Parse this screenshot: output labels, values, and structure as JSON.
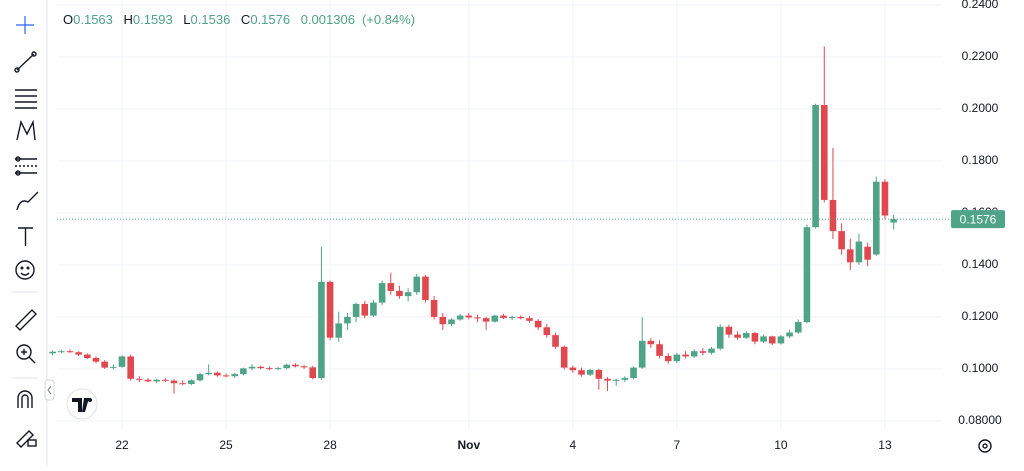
{
  "chart_data": {
    "type": "candlestick",
    "legend_labels": {
      "open": "O",
      "high": "H",
      "low": "L",
      "close": "C"
    },
    "change": 0.001306,
    "change_percent": {
      "value": 0.84,
      "label": "(+0.84%)"
    },
    "up_color": "#4fa386",
    "down_color": "#e0484f",
    "grid": true,
    "categories": [
      null,
      null,
      null,
      null,
      null,
      null,
      null,
      null,
      "22",
      null,
      null,
      null,
      null,
      null,
      null,
      null,
      null,
      null,
      null,
      null,
      "25",
      null,
      null,
      null,
      null,
      null,
      null,
      null,
      null,
      null,
      null,
      null,
      "28",
      null,
      null,
      null,
      null,
      null,
      null,
      null,
      null,
      null,
      null,
      null,
      null,
      null,
      null,
      null,
      "Nov",
      null,
      null,
      null,
      null,
      null,
      null,
      null,
      null,
      null,
      null,
      null,
      "4",
      null,
      null,
      null,
      null,
      null,
      null,
      null,
      null,
      null,
      null,
      null,
      "7",
      null,
      null,
      null,
      null,
      null,
      null,
      null,
      null,
      null,
      null,
      null,
      "10",
      null,
      null,
      null,
      null,
      null,
      null,
      null,
      null,
      null,
      null,
      null,
      "13",
      null
    ],
    "open": [
      0.106,
      0.1066,
      0.1068,
      0.1064,
      0.1055,
      0.1042,
      0.1028,
      0.1005,
      0.1008,
      0.1048,
      0.0962,
      0.0958,
      0.0952,
      0.0958,
      0.0955,
      0.0945,
      0.0942,
      0.0956,
      0.098,
      0.0985,
      0.0975,
      0.0972,
      0.098,
      0.1002,
      0.1008,
      0.1003,
      0.1,
      0.1003,
      0.1016,
      0.101,
      0.1006,
      0.0965,
      0.1335,
      0.112,
      0.1175,
      0.12,
      0.125,
      0.1205,
      0.1255,
      0.133,
      0.13,
      0.128,
      0.1295,
      0.1355,
      0.1265,
      0.12,
      0.1172,
      0.119,
      0.1205,
      0.1198,
      0.1195,
      0.1182,
      0.1205,
      0.1196,
      0.12,
      0.1195,
      0.1185,
      0.116,
      0.113,
      0.1085,
      0.1005,
      0.0995,
      0.0978,
      0.0996,
      0.0962,
      0.0955,
      0.0958,
      0.0965,
      0.1005,
      0.1108,
      0.1095,
      0.105,
      0.103,
      0.1055,
      0.1048,
      0.1068,
      0.1062,
      0.1078,
      0.1162,
      0.1132,
      0.112,
      0.1138,
      0.1105,
      0.1125,
      0.1098,
      0.1125,
      0.114,
      0.118,
      0.1545,
      0.2015,
      0.165,
      0.153,
      0.146,
      0.141,
      0.147,
      0.144,
      0.172,
      0.1563
    ],
    "high": [
      0.1072,
      0.1074,
      0.1075,
      0.1068,
      0.106,
      0.1048,
      0.1034,
      0.1018,
      0.1052,
      0.1055,
      0.0972,
      0.0965,
      0.0962,
      0.0964,
      0.096,
      0.0956,
      0.096,
      0.0985,
      0.1018,
      0.099,
      0.0982,
      0.0985,
      0.1005,
      0.1018,
      0.1012,
      0.101,
      0.1008,
      0.102,
      0.1022,
      0.1015,
      0.1012,
      0.147,
      0.134,
      0.122,
      0.1215,
      0.1255,
      0.1262,
      0.1265,
      0.134,
      0.137,
      0.132,
      0.131,
      0.1365,
      0.1362,
      0.128,
      0.1215,
      0.1195,
      0.1212,
      0.1215,
      0.1208,
      0.12,
      0.1208,
      0.1212,
      0.1205,
      0.1206,
      0.1203,
      0.1192,
      0.1172,
      0.114,
      0.109,
      0.1012,
      0.1005,
      0.1,
      0.1,
      0.0968,
      0.0962,
      0.0972,
      0.101,
      0.1198,
      0.1118,
      0.111,
      0.106,
      0.1062,
      0.1068,
      0.1075,
      0.108,
      0.1085,
      0.1172,
      0.117,
      0.1145,
      0.1145,
      0.1142,
      0.1132,
      0.1128,
      0.113,
      0.115,
      0.119,
      0.1555,
      0.202,
      0.224,
      0.185,
      0.156,
      0.15,
      0.152,
      0.1485,
      0.174,
      0.173,
      0.1593
    ],
    "low": [
      0.1052,
      0.106,
      0.1062,
      0.105,
      0.1038,
      0.1022,
      0.1,
      0.0998,
      0.1005,
      0.0955,
      0.095,
      0.0948,
      0.0945,
      0.095,
      0.0905,
      0.0938,
      0.0938,
      0.0952,
      0.0975,
      0.097,
      0.0968,
      0.0965,
      0.0975,
      0.0995,
      0.0998,
      0.0995,
      0.0994,
      0.0998,
      0.1005,
      0.1,
      0.096,
      0.0958,
      0.111,
      0.1105,
      0.115,
      0.118,
      0.1195,
      0.12,
      0.1245,
      0.1285,
      0.127,
      0.126,
      0.1285,
      0.1255,
      0.119,
      0.115,
      0.1165,
      0.1185,
      0.119,
      0.118,
      0.115,
      0.1178,
      0.1192,
      0.1188,
      0.119,
      0.1178,
      0.115,
      0.112,
      0.1078,
      0.0998,
      0.0985,
      0.097,
      0.0972,
      0.092,
      0.0915,
      0.0935,
      0.095,
      0.096,
      0.1,
      0.108,
      0.104,
      0.102,
      0.1022,
      0.104,
      0.1042,
      0.1052,
      0.1055,
      0.1072,
      0.112,
      0.1112,
      0.1115,
      0.1095,
      0.11,
      0.1092,
      0.1094,
      0.1118,
      0.1135,
      0.1175,
      0.154,
      0.164,
      0.15,
      0.144,
      0.138,
      0.14,
      0.1395,
      0.1435,
      0.1575,
      0.1536
    ],
    "close": [
      0.1066,
      0.1068,
      0.1064,
      0.1055,
      0.1042,
      0.1028,
      0.1005,
      0.1008,
      0.1048,
      0.0962,
      0.0958,
      0.0952,
      0.0958,
      0.0955,
      0.0945,
      0.0942,
      0.0956,
      0.098,
      0.0985,
      0.0975,
      0.0972,
      0.098,
      0.1002,
      0.1008,
      0.1003,
      0.1,
      0.1003,
      0.1016,
      0.101,
      0.1006,
      0.0965,
      0.1335,
      0.112,
      0.1175,
      0.12,
      0.125,
      0.1205,
      0.1255,
      0.133,
      0.13,
      0.128,
      0.1295,
      0.1355,
      0.1265,
      0.12,
      0.1172,
      0.119,
      0.1205,
      0.1198,
      0.1195,
      0.1182,
      0.1205,
      0.1196,
      0.12,
      0.1195,
      0.1185,
      0.116,
      0.113,
      0.1085,
      0.1005,
      0.0995,
      0.0978,
      0.0996,
      0.0962,
      0.0955,
      0.0958,
      0.0965,
      0.1005,
      0.1108,
      0.1095,
      0.105,
      0.103,
      0.1055,
      0.1048,
      0.1068,
      0.1062,
      0.1078,
      0.1162,
      0.1132,
      0.112,
      0.1138,
      0.1105,
      0.1125,
      0.1098,
      0.1125,
      0.114,
      0.118,
      0.1545,
      0.2015,
      0.165,
      0.153,
      0.146,
      0.141,
      0.149,
      0.142,
      0.172,
      0.159,
      0.1576
    ],
    "ylim": [
      0.0765,
      0.2419
    ],
    "yticks": [
      {
        "value": 0.08,
        "label": "0.08000"
      },
      {
        "value": 0.1,
        "label": "0.1000"
      },
      {
        "value": 0.12,
        "label": "0.1200"
      },
      {
        "value": 0.14,
        "label": "0.1400"
      },
      {
        "value": 0.16,
        "label": "0.1600"
      },
      {
        "value": 0.18,
        "label": "0.1800"
      },
      {
        "value": 0.2,
        "label": "0.2000"
      },
      {
        "value": 0.22,
        "label": "0.2200"
      },
      {
        "value": 0.24,
        "label": "0.2400"
      }
    ]
  }
}
